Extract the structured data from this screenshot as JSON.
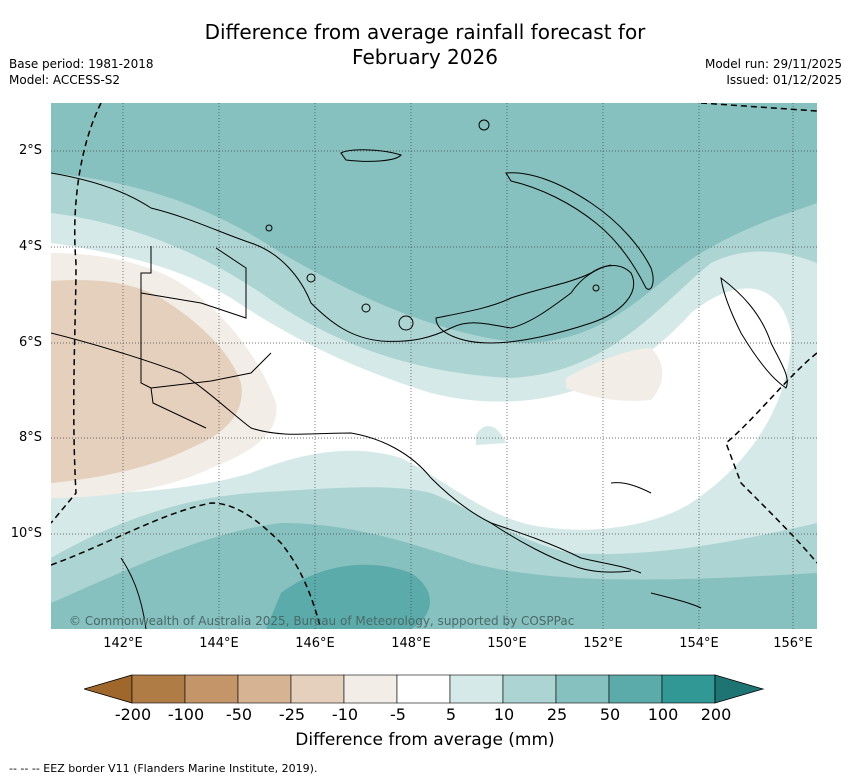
{
  "title_line1": "Difference from average rainfall forecast for",
  "title_line2": "February 2026",
  "meta_left": {
    "base_period": "Base period: 1981-2018",
    "model": "Model: ACCESS-S2"
  },
  "meta_right": {
    "model_run": "Model run: 29/11/2025",
    "issued": "Issued: 01/12/2025"
  },
  "lat_labels": [
    "2°S",
    "4°S",
    "6°S",
    "8°S",
    "10°S"
  ],
  "lon_labels": [
    "142°E",
    "144°E",
    "146°E",
    "148°E",
    "150°E",
    "152°E",
    "154°E",
    "156°E"
  ],
  "colorbar": {
    "title": "Difference from average (mm)",
    "labels": [
      "-200",
      "-100",
      "-50",
      "-25",
      "-10",
      "-5",
      "5",
      "10",
      "25",
      "50",
      "100",
      "200"
    ],
    "colors": [
      "#a0672d",
      "#b07c45",
      "#c5956a",
      "#d5b393",
      "#e5d0bd",
      "#f2ede6",
      "#ffffff",
      "#d4e9e8",
      "#acd4d3",
      "#86c0bf",
      "#5aabaa",
      "#319896",
      "#1e7473"
    ]
  },
  "copyright": "© Commonwealth of Australia 2025, Bureau of Meteorology, supported by COSPPac",
  "footnote": "-- -- -- EEZ border V11 (Flanders Marine Institute, 2019)."
}
